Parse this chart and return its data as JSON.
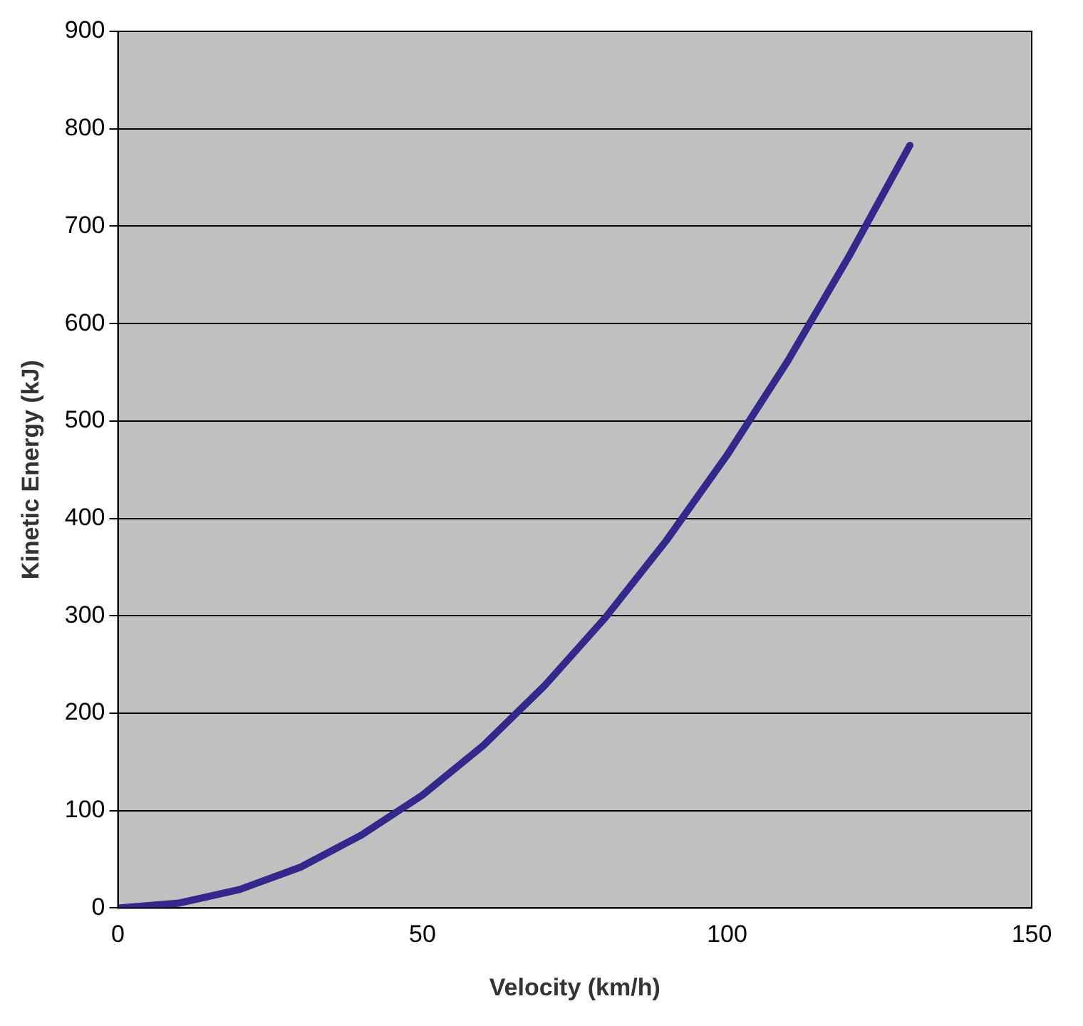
{
  "chart_data": {
    "type": "line",
    "xlabel": "Velocity (km/h)",
    "ylabel": "Kinetic Energy (kJ)",
    "x": [
      0,
      10,
      20,
      30,
      40,
      50,
      60,
      70,
      80,
      90,
      100,
      110,
      120,
      130
    ],
    "series": [
      {
        "color": "#35288c",
        "values": [
          0,
          5,
          19,
          42,
          75,
          116,
          167,
          228,
          298,
          377,
          465,
          562,
          669,
          783
        ]
      }
    ],
    "xlim": [
      0,
      150
    ],
    "xticks": [
      0,
      50,
      100,
      150
    ],
    "ylim": [
      0,
      900
    ],
    "yticks": [
      0,
      100,
      200,
      300,
      400,
      500,
      600,
      700,
      800,
      900
    ],
    "grid": "y",
    "marker": "none",
    "line_style": "solid",
    "legend": false
  }
}
